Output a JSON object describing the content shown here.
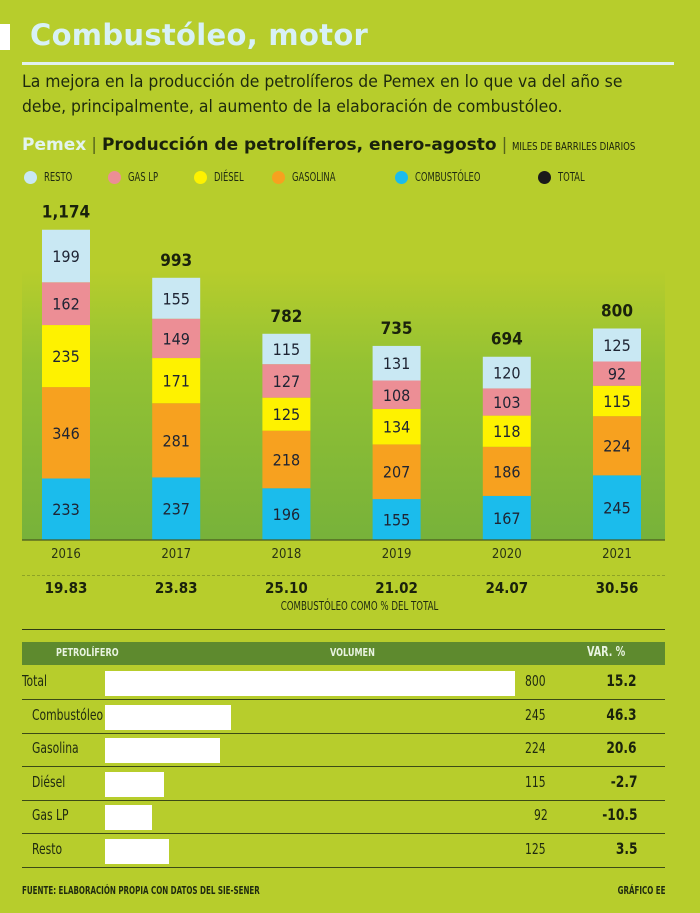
{
  "header": {
    "title": "Combustóleo, motor",
    "lede": "La mejora en la producción de petrolíferos de Pemex en lo que va del año se debe, principalmente, al aumento de la elaboración de combustóleo."
  },
  "chart_head": {
    "source": "Pemex",
    "separator": "|",
    "title": "Producción de petrolíferos, enero-agosto",
    "unit": "MILES DE BARRILES DIARIOS"
  },
  "legend": [
    {
      "label": "RESTO",
      "color": "#c9e8f3"
    },
    {
      "label": "GAS LP",
      "color": "#ec8e95"
    },
    {
      "label": "DIÉSEL",
      "color": "#fef200"
    },
    {
      "label": "GASOLINA",
      "color": "#f7a11f"
    },
    {
      "label": "COMBUSTÓLEO",
      "color": "#1bbcec"
    },
    {
      "label": "TOTAL",
      "color": "#1a1a1a"
    }
  ],
  "chart_data": {
    "type": "bar",
    "stacked": true,
    "title": "Producción de petrolíferos, enero-agosto",
    "ylabel": "Miles de barriles diarios",
    "xlabel": "",
    "categories": [
      "2016",
      "2017",
      "2018",
      "2019",
      "2020",
      "2021"
    ],
    "series": [
      {
        "name": "COMBUSTÓLEO",
        "color": "#1bbcec",
        "values": [
          233,
          237,
          196,
          155,
          167,
          245
        ]
      },
      {
        "name": "GASOLINA",
        "color": "#f7a11f",
        "values": [
          346,
          281,
          218,
          207,
          186,
          224
        ]
      },
      {
        "name": "DIÉSEL",
        "color": "#fef200",
        "values": [
          235,
          171,
          125,
          134,
          118,
          115
        ]
      },
      {
        "name": "GAS LP",
        "color": "#ec8e95",
        "values": [
          162,
          149,
          127,
          108,
          103,
          92
        ]
      },
      {
        "name": "RESTO",
        "color": "#c9e8f3",
        "values": [
          199,
          155,
          115,
          131,
          120,
          125
        ]
      }
    ],
    "totals": [
      "1,174",
      "993",
      "782",
      "735",
      "694",
      "800"
    ],
    "total_values": [
      1174,
      993,
      782,
      735,
      694,
      800
    ],
    "combustoleo_pct": [
      "19.83",
      "23.83",
      "25.10",
      "21.02",
      "24.07",
      "30.56"
    ],
    "combustoleo_pct_label": "COMBUSTÓLEO COMO % DEL TOTAL",
    "ylim": [
      0,
      1174
    ],
    "legend_position": "top",
    "grid": false
  },
  "table": {
    "headers": {
      "product": "PETROLÍFERO",
      "volume": "VOLUMEN",
      "var": "VAR. %"
    },
    "max_volume": 800,
    "rows": [
      {
        "name": "Total",
        "volume": 800,
        "volume_label": "800",
        "var": "15.2"
      },
      {
        "name": "Combustóleo",
        "volume": 245,
        "volume_label": "245",
        "var": "46.3"
      },
      {
        "name": "Gasolina",
        "volume": 224,
        "volume_label": "224",
        "var": "20.6"
      },
      {
        "name": "Diésel",
        "volume": 115,
        "volume_label": "115",
        "var": "-2.7"
      },
      {
        "name": "Gas LP",
        "volume": 92,
        "volume_label": "92",
        "var": "-10.5"
      },
      {
        "name": "Resto",
        "volume": 125,
        "volume_label": "125",
        "var": "3.5"
      }
    ]
  },
  "footer": {
    "source": "FUENTE: ELABORACIÓN PROPIA CON DATOS DEL SIE-SENER",
    "credit": "GRÁFICO EE"
  }
}
